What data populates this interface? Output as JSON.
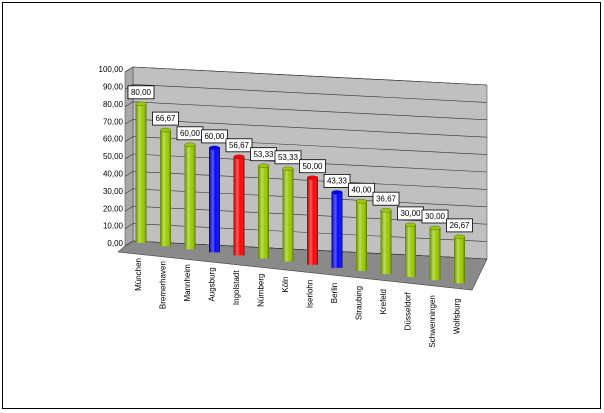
{
  "chart_data": {
    "type": "bar",
    "categories": [
      "München",
      "Bremerhaven",
      "Mannheim",
      "Augsburg",
      "Ingolstadt",
      "Nürnberg",
      "Köln",
      "Iserlohn",
      "Berlin",
      "Straubing",
      "Krefeld",
      "Düsseldorf",
      "Schwenningen",
      "Wolfsburg"
    ],
    "values": [
      80,
      66.67,
      60,
      60,
      56.67,
      53.33,
      53.33,
      50,
      43.33,
      40,
      36.67,
      30,
      30,
      26.67
    ],
    "value_labels": [
      "80,00",
      "66,67",
      "60,00",
      "60,00",
      "56,67",
      "53,33",
      "53,33",
      "50,00",
      "43,33",
      "40,00",
      "36,67",
      "30,00",
      "30,00",
      "26,67"
    ],
    "colors": [
      "#99cc00",
      "#99cc00",
      "#99cc00",
      "#0000ff",
      "#ff0000",
      "#99cc00",
      "#99cc00",
      "#ff0000",
      "#0000ff",
      "#99cc00",
      "#99cc00",
      "#99cc00",
      "#99cc00",
      "#99cc00"
    ],
    "ylim": [
      0,
      100
    ],
    "yticks": [
      {
        "value": 0,
        "label": "0,00"
      },
      {
        "value": 10,
        "label": "10,00"
      },
      {
        "value": 20,
        "label": "20,00"
      },
      {
        "value": 30,
        "label": "30,00"
      },
      {
        "value": 40,
        "label": "40,00"
      },
      {
        "value": 50,
        "label": "50,00"
      },
      {
        "value": 60,
        "label": "60,00"
      },
      {
        "value": 70,
        "label": "70,00"
      },
      {
        "value": 80,
        "label": "80,00"
      },
      {
        "value": 90,
        "label": "90,00"
      },
      {
        "value": 100,
        "label": "100,00"
      }
    ],
    "grid": true
  }
}
